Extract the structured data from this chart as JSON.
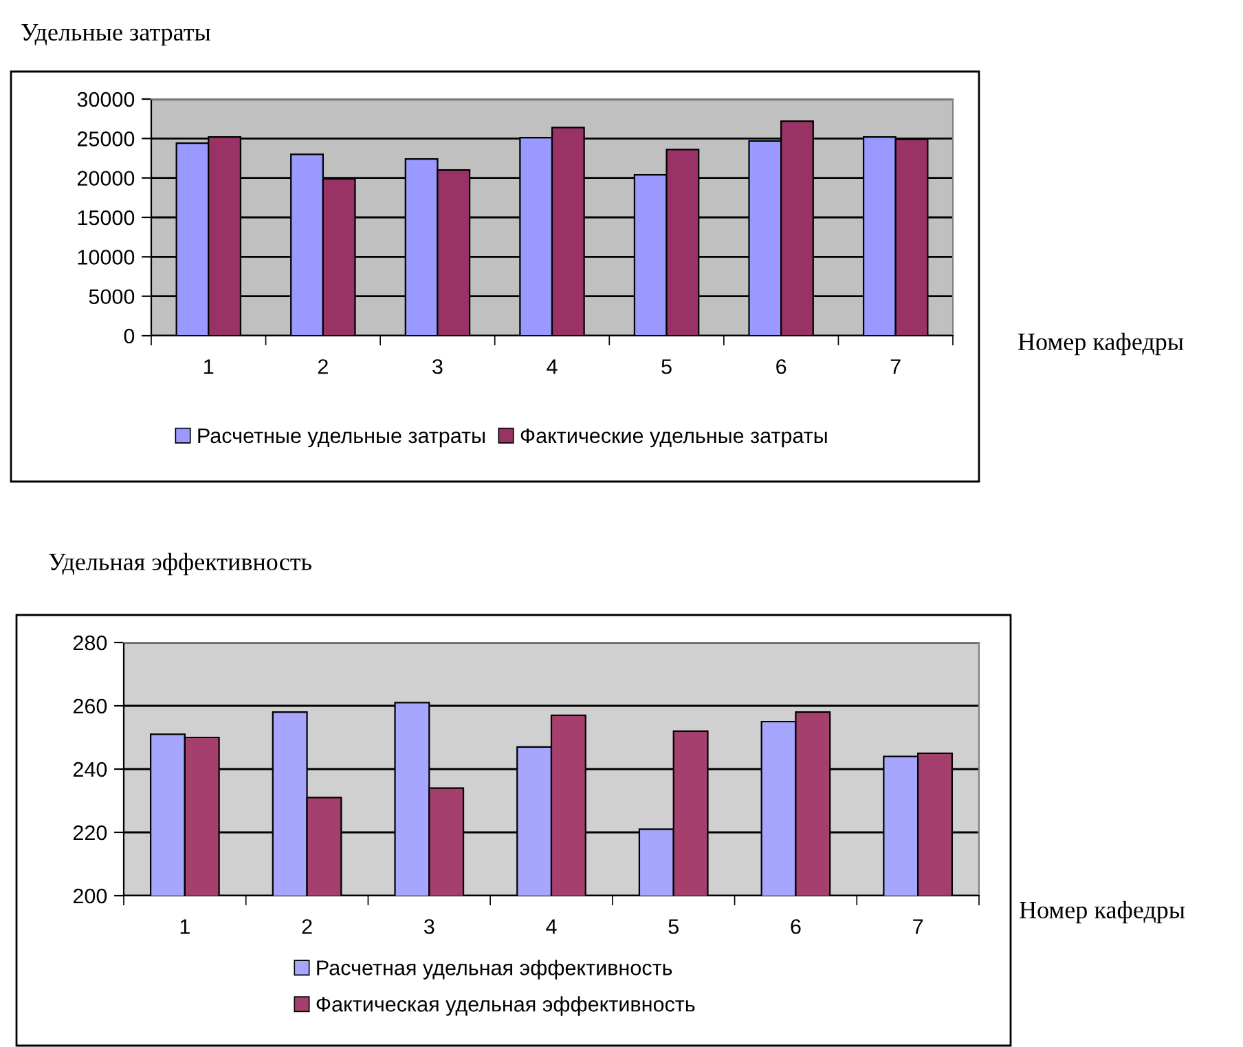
{
  "chart_data": [
    {
      "type": "bar",
      "title": "Удельные затраты",
      "xlabel": "Номер кафедры",
      "categories": [
        "1",
        "2",
        "3",
        "4",
        "5",
        "6",
        "7"
      ],
      "series": [
        {
          "name": "Расчетные удельные затраты",
          "color": "#9999ff",
          "values": [
            24400,
            23000,
            22400,
            25100,
            20400,
            24700,
            25200
          ]
        },
        {
          "name": "Фактические удельные затраты",
          "color": "#993366",
          "values": [
            25200,
            19900,
            21000,
            26400,
            23600,
            27200,
            24900
          ]
        }
      ],
      "ylim": [
        0,
        30000
      ],
      "yticks": [
        0,
        5000,
        10000,
        15000,
        20000,
        25000,
        30000
      ],
      "grid": "y",
      "legend": "bottom"
    },
    {
      "type": "bar",
      "title": "Удельная эффективность",
      "xlabel": "Номер кафедры",
      "categories": [
        "1",
        "2",
        "3",
        "4",
        "5",
        "6",
        "7"
      ],
      "series": [
        {
          "name": "Расчетная удельная эффективность",
          "color": "#a6a6ff",
          "values": [
            251,
            258,
            261,
            247,
            221,
            255,
            244
          ]
        },
        {
          "name": "Фактическая удельная эффективность",
          "color": "#a5406e",
          "values": [
            250,
            231,
            234,
            257,
            252,
            258,
            245
          ]
        }
      ],
      "ylim": [
        200,
        280
      ],
      "yticks": [
        200,
        220,
        240,
        260,
        280
      ],
      "grid": "y",
      "legend": "bottom"
    }
  ]
}
